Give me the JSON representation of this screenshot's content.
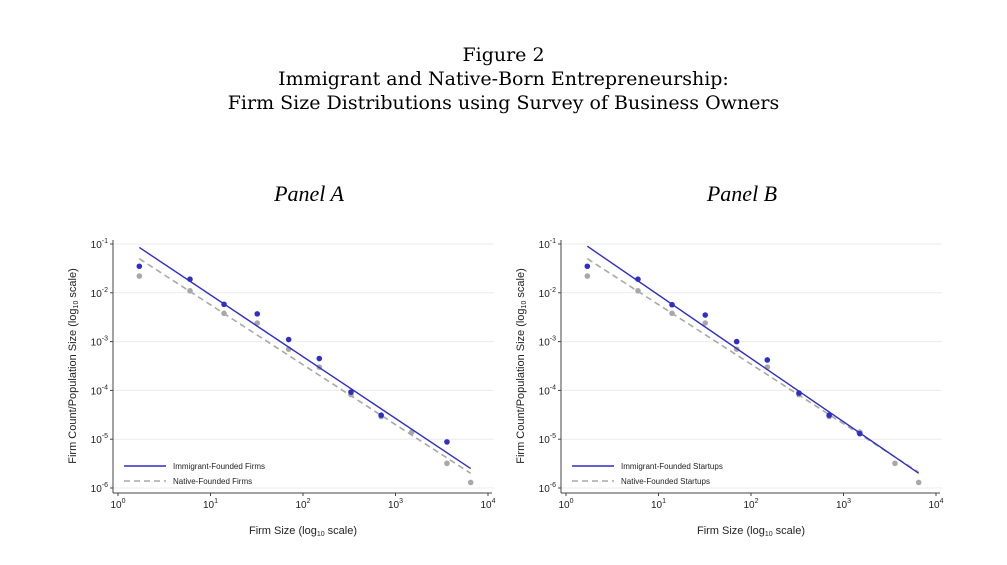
{
  "figure": {
    "number": "Figure 2",
    "title": "Immigrant and Native-Born Entrepreneurship:",
    "subtitle": "Firm Size Distributions using Survey of Business Owners"
  },
  "colors": {
    "immigrant": "#2f2fc4",
    "native": "#a8a8a8",
    "grid": "#ececec"
  },
  "chart_data": [
    {
      "type": "scatter",
      "title": "Panel A",
      "xlabel": "Firm Size (log10 scale)",
      "ylabel": "Firm Count/Population Size (log10 scale)",
      "xscale": "log10",
      "yscale": "log10",
      "xlim": [
        1,
        10000
      ],
      "ylim": [
        1e-06,
        0.1
      ],
      "xticks": [
        "10^0",
        "10^1",
        "10^2",
        "10^3",
        "10^4"
      ],
      "yticks": [
        "10^-6",
        "10^-5",
        "10^-4",
        "10^-3",
        "10^-2",
        "10^-1"
      ],
      "grid": true,
      "legend_position": "bottom-left",
      "series": [
        {
          "name": "Immigrant-Founded Firms",
          "style": "solid",
          "points": [
            [
              1.7,
              0.035
            ],
            [
              6,
              0.019
            ],
            [
              14,
              0.0058
            ],
            [
              32,
              0.0037
            ],
            [
              70,
              0.0011
            ],
            [
              150,
              0.00045
            ],
            [
              330,
              9.2e-05
            ],
            [
              700,
              3.1e-05
            ],
            [
              3600,
              8.8e-06
            ]
          ],
          "fit": [
            [
              1.7,
              0.085
            ],
            [
              6500,
              2.5e-06
            ]
          ]
        },
        {
          "name": "Native-Founded Firms",
          "style": "dashed",
          "points": [
            [
              1.7,
              0.022
            ],
            [
              6,
              0.011
            ],
            [
              14,
              0.0038
            ],
            [
              32,
              0.0024
            ],
            [
              70,
              0.0007
            ],
            [
              150,
              0.0003
            ],
            [
              330,
              8.2e-05
            ],
            [
              700,
              2.9e-05
            ],
            [
              1500,
              1.4e-05
            ],
            [
              3600,
              3.2e-06
            ],
            [
              6500,
              1.3e-06
            ]
          ],
          "fit": [
            [
              1.7,
              0.05
            ],
            [
              6500,
              2e-06
            ]
          ]
        }
      ]
    },
    {
      "type": "scatter",
      "title": "Panel B",
      "xlabel": "Firm Size (log10 scale)",
      "ylabel": "Firm Count/Population Size (log10 scale)",
      "xscale": "log10",
      "yscale": "log10",
      "xlim": [
        1,
        10000
      ],
      "ylim": [
        1e-06,
        0.1
      ],
      "xticks": [
        "10^0",
        "10^1",
        "10^2",
        "10^3",
        "10^4"
      ],
      "yticks": [
        "10^-6",
        "10^-5",
        "10^-4",
        "10^-3",
        "10^-2",
        "10^-1"
      ],
      "grid": true,
      "legend_position": "bottom-left",
      "series": [
        {
          "name": "Immigrant-Founded Startups",
          "style": "solid",
          "points": [
            [
              1.7,
              0.035
            ],
            [
              6,
              0.019
            ],
            [
              14,
              0.0057
            ],
            [
              32,
              0.0035
            ],
            [
              70,
              0.001
            ],
            [
              150,
              0.00042
            ],
            [
              330,
              8.8e-05
            ],
            [
              700,
              3.1e-05
            ],
            [
              1500,
              1.3e-05
            ]
          ],
          "fit": [
            [
              1.7,
              0.09
            ],
            [
              6500,
              2e-06
            ]
          ]
        },
        {
          "name": "Native-Founded Startups",
          "style": "dashed",
          "points": [
            [
              1.7,
              0.022
            ],
            [
              6,
              0.011
            ],
            [
              14,
              0.0038
            ],
            [
              32,
              0.0024
            ],
            [
              70,
              0.0007
            ],
            [
              150,
              0.0003
            ],
            [
              330,
              8.2e-05
            ],
            [
              700,
              2.9e-05
            ],
            [
              1500,
              1.4e-05
            ],
            [
              3600,
              3.2e-06
            ],
            [
              6500,
              1.3e-06
            ]
          ],
          "fit": [
            [
              1.7,
              0.05
            ],
            [
              6500,
              2.1e-06
            ]
          ]
        }
      ]
    }
  ]
}
